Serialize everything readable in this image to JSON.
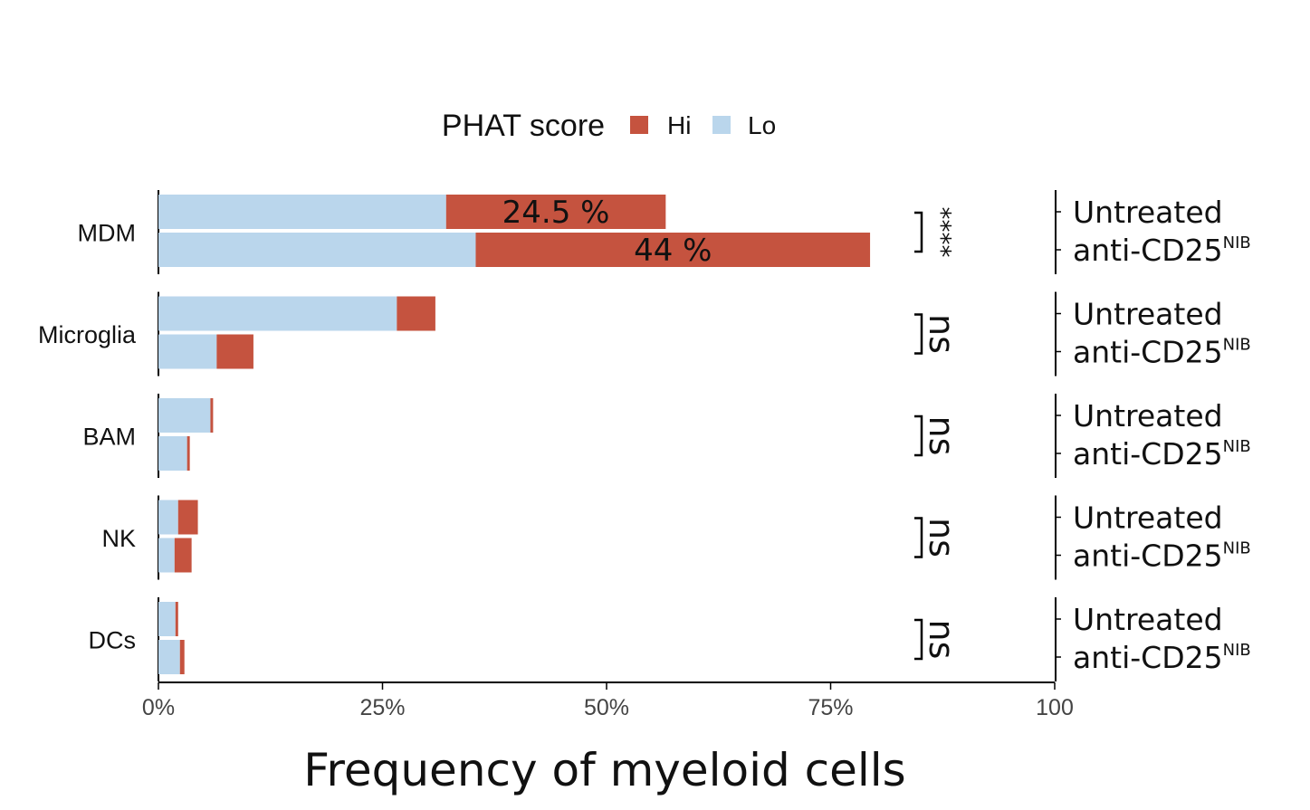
{
  "legend": {
    "title": "PHAT score",
    "items": [
      {
        "label": "Hi",
        "color": "#c5533f"
      },
      {
        "label": "Lo",
        "color": "#bad6ec"
      }
    ]
  },
  "colors": {
    "hi": "#c5533f",
    "lo": "#bad6ec",
    "axis": "#000000",
    "text": "#111111"
  },
  "chart_data": {
    "type": "bar",
    "orientation": "horizontal",
    "stacked": true,
    "xlabel": "Frequency of myeloid cells",
    "ylabel": "",
    "xlim": [
      0,
      100
    ],
    "x_ticks": [
      0,
      25,
      50,
      75,
      100
    ],
    "x_tick_labels": [
      "0%",
      "25%",
      "50%",
      "75%",
      "100"
    ],
    "categories": [
      "MDM",
      "Microglia",
      "BAM",
      "NK",
      "DCs"
    ],
    "conditions": [
      "Untreated",
      "anti-CD25"
    ],
    "condition_superscript": [
      "",
      "NIB"
    ],
    "series": [
      {
        "name": "Lo",
        "values": {
          "Untreated": [
            32.1,
            26.6,
            5.8,
            2.2,
            1.9
          ],
          "anti-CD25": [
            35.4,
            6.5,
            3.2,
            1.8,
            2.4
          ]
        }
      },
      {
        "name": "Hi",
        "values": {
          "Untreated": [
            24.5,
            4.3,
            0.3,
            2.2,
            0.3
          ],
          "anti-CD25": [
            44.0,
            4.1,
            0.3,
            1.9,
            0.5
          ]
        }
      }
    ],
    "bar_labels": [
      {
        "category": "MDM",
        "condition": "Untreated",
        "text": "24.5 %"
      },
      {
        "category": "MDM",
        "condition": "anti-CD25",
        "text": "44 %"
      }
    ],
    "significance": [
      "****",
      "ns",
      "ns",
      "ns",
      "ns"
    ],
    "grid": false,
    "legend_position": "top"
  }
}
